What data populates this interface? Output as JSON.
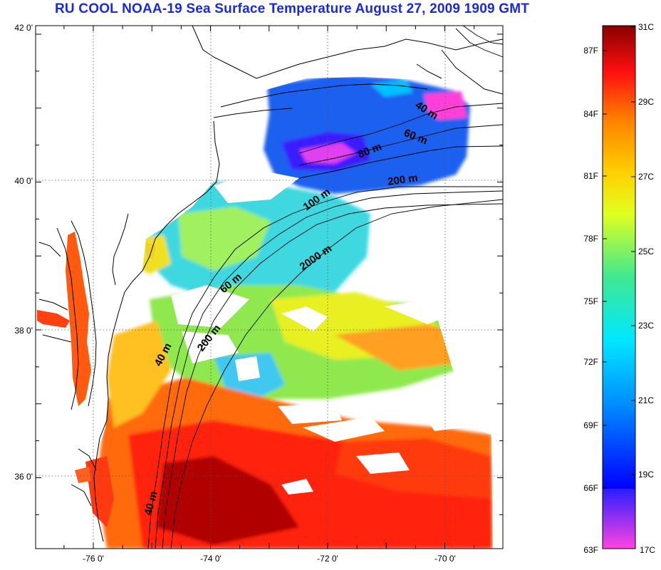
{
  "title": "RU COOL  NOAA-19 Sea Surface Temperature August 27, 2009 1909 GMT",
  "map": {
    "lat_labels": [
      {
        "label": "42 0'",
        "value": 42
      },
      {
        "label": "40 0'",
        "value": 40
      },
      {
        "label": "38 0'",
        "value": 38
      },
      {
        "label": "36 0'",
        "value": 36
      }
    ],
    "lon_labels": [
      {
        "label": "-76 0'",
        "value": -76
      },
      {
        "label": "-74 0'",
        "value": -74
      },
      {
        "label": "-72 0'",
        "value": -72
      },
      {
        "label": "-70 0'",
        "value": -70
      }
    ],
    "isobath_labels": [
      "40 m",
      "60 m",
      "80 m",
      "200 m",
      "100 m",
      "2000 m",
      "60 m",
      "40 m",
      "200 m",
      "40 m"
    ]
  },
  "colorbar": {
    "colors": [
      "#ff44e0",
      "#2a1eff",
      "#0090ff",
      "#00e8ff",
      "#40e890",
      "#e0ff20",
      "#ffd000",
      "#ff8000",
      "#ff1010",
      "#8a0000"
    ],
    "celsius_labels": [
      "31C",
      "29C",
      "27C",
      "25C",
      "23C",
      "21C",
      "19C",
      "17C"
    ],
    "fahrenheit_labels": [
      "87F",
      "84F",
      "81F",
      "78F",
      "75F",
      "72F",
      "69F",
      "66F",
      "63F"
    ]
  }
}
